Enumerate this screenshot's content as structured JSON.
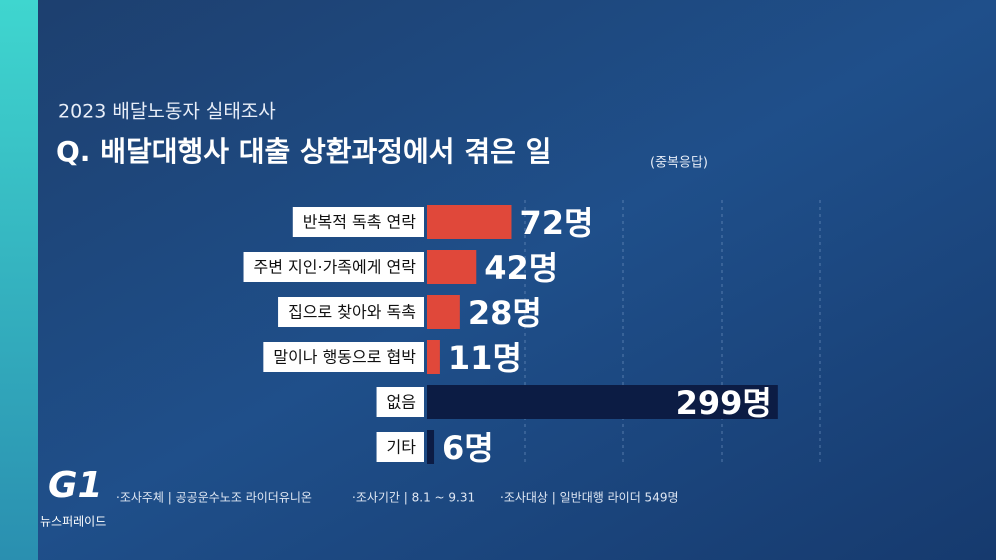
{
  "chart_data": {
    "type": "bar",
    "orientation": "horizontal",
    "subtitle": "2023 배달노동자 실태조사",
    "title": "Q. 배달대행사 대출 상환과정에서 겪은 일",
    "note": "(중복응답)",
    "categories": [
      "반복적 독촉 연락",
      "주변 지인·가족에게 연락",
      "집으로 찾아와 독촉",
      "말이나 행동으로 협박",
      "없음",
      "기타"
    ],
    "values": [
      72,
      42,
      28,
      11,
      299,
      6
    ],
    "value_labels": [
      "72명",
      "42명",
      "28명",
      "11명",
      "299명",
      "6명"
    ],
    "colors": [
      "#e0483a",
      "#e0483a",
      "#e0483a",
      "#e0483a",
      "#0c1c44",
      "#0c1c44"
    ],
    "xlim": [
      0,
      300
    ],
    "footnotes": [
      "·조사주체 | 공공운수노조 라이더유니온",
      "·조사기간 | 8.1 ~ 9.31",
      "·조사대상 | 일반대행 라이더 549명"
    ]
  },
  "logo": {
    "mark": "G1",
    "program": "뉴스퍼레이드"
  }
}
